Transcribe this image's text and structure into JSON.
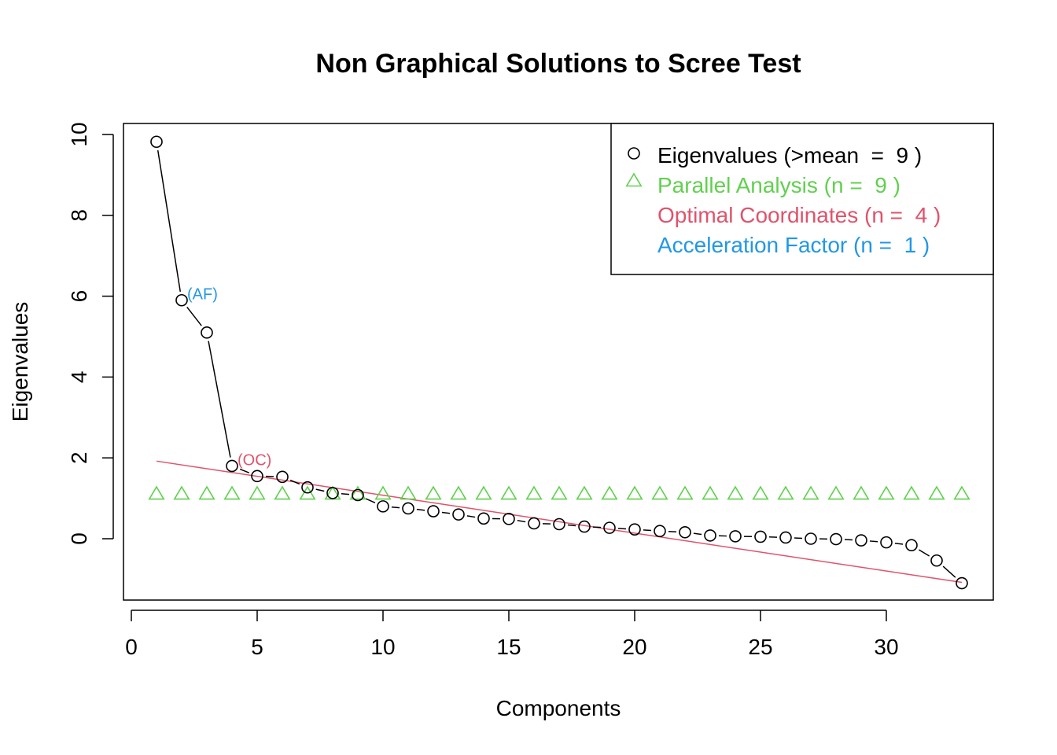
{
  "chart_data": {
    "type": "scatter",
    "title": "Non Graphical Solutions to Scree Test",
    "xlabel": "Components",
    "ylabel": "Eigenvalues",
    "xlim": [
      0,
      34
    ],
    "ylim": [
      -1.5,
      10.2
    ],
    "x_ticks": [
      0,
      5,
      10,
      15,
      20,
      25,
      30
    ],
    "y_ticks": [
      0,
      2,
      4,
      6,
      8,
      10
    ],
    "grid": false,
    "legend_position": "top-right",
    "colors": {
      "eigen": "#000000",
      "parallel": "#61D04F",
      "oc": "#DF536B",
      "af": "#2297E6"
    },
    "series": [
      {
        "name": "Eigenvalues",
        "marker": "circle",
        "x": [
          1,
          2,
          3,
          4,
          5,
          6,
          7,
          8,
          9,
          10,
          11,
          12,
          13,
          14,
          15,
          16,
          17,
          18,
          19,
          20,
          21,
          22,
          23,
          24,
          25,
          26,
          27,
          28,
          29,
          30,
          31,
          32,
          33
        ],
        "values": [
          9.82,
          5.9,
          5.1,
          1.8,
          1.55,
          1.53,
          1.27,
          1.13,
          1.08,
          0.8,
          0.75,
          0.68,
          0.6,
          0.5,
          0.49,
          0.38,
          0.36,
          0.3,
          0.27,
          0.23,
          0.19,
          0.16,
          0.08,
          0.06,
          0.05,
          0.03,
          0.0,
          -0.01,
          -0.04,
          -0.09,
          -0.16,
          -0.54,
          -1.1
        ]
      },
      {
        "name": "Parallel Analysis",
        "marker": "triangle",
        "x": [
          1,
          2,
          3,
          4,
          5,
          6,
          7,
          8,
          9,
          10,
          11,
          12,
          13,
          14,
          15,
          16,
          17,
          18,
          19,
          20,
          21,
          22,
          23,
          24,
          25,
          26,
          27,
          28,
          29,
          30,
          31,
          32,
          33
        ],
        "values": [
          1.05,
          1.05,
          1.05,
          1.05,
          1.05,
          1.05,
          1.05,
          1.05,
          1.05,
          1.05,
          1.05,
          1.05,
          1.05,
          1.05,
          1.05,
          1.05,
          1.05,
          1.05,
          1.05,
          1.05,
          1.05,
          1.05,
          1.05,
          1.05,
          1.05,
          1.05,
          1.05,
          1.05,
          1.05,
          1.05,
          1.05,
          1.05,
          1.05
        ]
      },
      {
        "name": "Optimal Coordinates line",
        "marker": "line",
        "x": [
          1,
          33
        ],
        "values": [
          1.92,
          -1.08
        ]
      }
    ],
    "annotations": [
      {
        "text": "(AF)",
        "x": 2,
        "y": 5.9,
        "color_key": "af"
      },
      {
        "text": "(OC)",
        "x": 4,
        "y": 1.8,
        "color_key": "oc"
      }
    ],
    "legend": [
      {
        "text": "Eigenvalues (>mean  =  9 )",
        "marker": "circle",
        "color_key": "eigen"
      },
      {
        "text": "Parallel Analysis (n =  9 )",
        "marker": "triangle",
        "color_key": "parallel"
      },
      {
        "text": "Optimal Coordinates (n =  4 )",
        "marker": "none",
        "color_key": "oc"
      },
      {
        "text": "Acceleration Factor (n =  1 )",
        "marker": "none",
        "color_key": "af"
      }
    ]
  }
}
